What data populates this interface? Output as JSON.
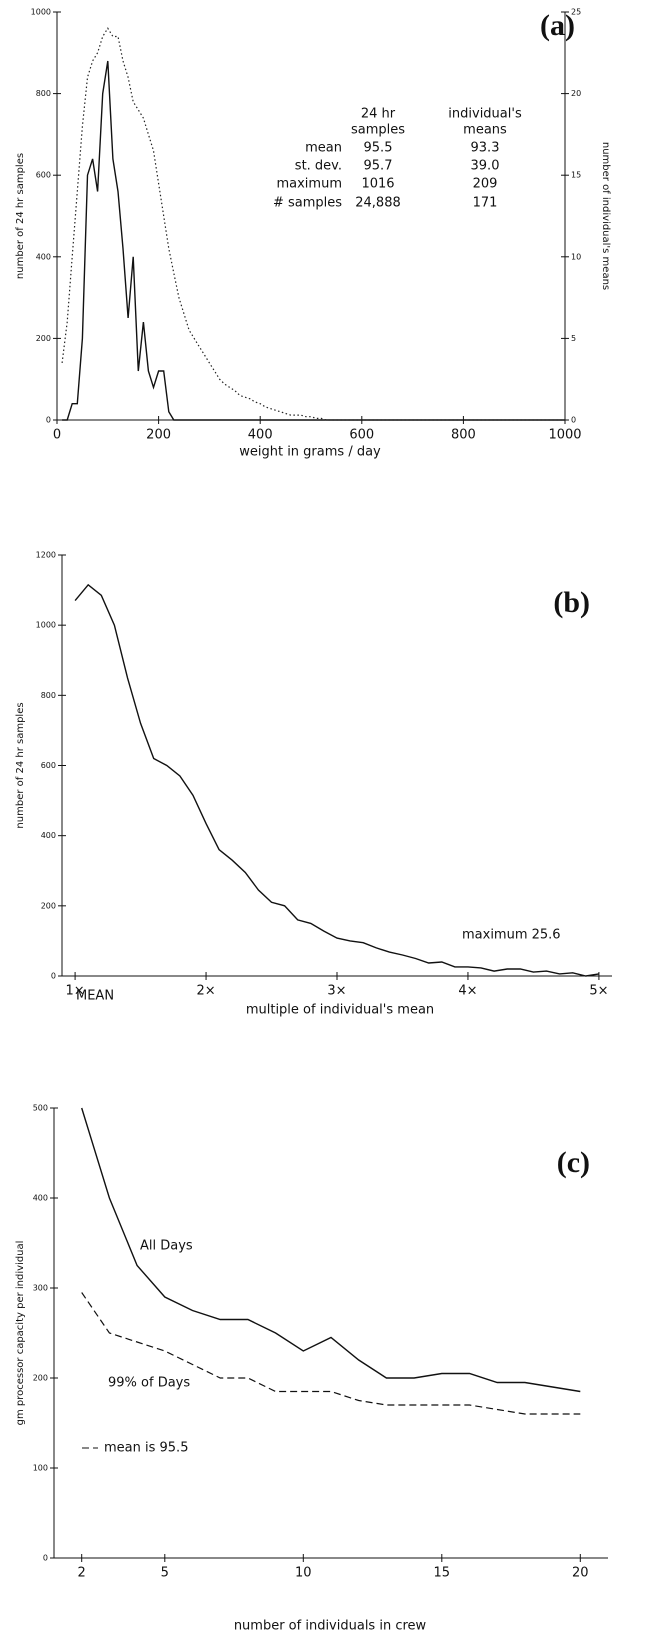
{
  "chart_data": [
    {
      "type": "line",
      "title": "(a)",
      "xlabel": "weight in grams / day",
      "ylabel": "number of 24 hr samples",
      "y2label": "number of individual's means",
      "x": [
        10,
        20,
        30,
        40,
        50,
        60,
        70,
        80,
        90,
        100,
        110,
        120,
        130,
        140,
        150,
        160,
        170,
        180,
        190,
        200,
        210,
        220,
        230,
        240,
        250,
        260,
        270,
        280,
        290,
        300,
        310,
        320,
        330,
        340,
        350,
        360,
        370,
        380,
        390,
        400,
        410,
        420,
        430,
        440,
        450,
        460,
        470,
        480,
        490,
        500,
        510,
        520,
        530,
        540,
        600,
        700,
        800,
        900,
        1000
      ],
      "series": [
        {
          "color": "#111111",
          "style": "solid",
          "values": [
            0,
            0,
            40,
            40,
            200,
            600,
            640,
            560,
            800,
            880,
            640,
            560,
            420,
            250,
            400,
            120,
            240,
            120,
            80,
            120,
            120,
            20,
            0,
            0,
            0,
            0,
            0,
            0,
            0,
            0,
            0,
            0,
            0,
            0,
            0,
            0,
            0,
            0,
            0,
            0,
            0,
            0,
            0,
            0,
            0,
            0,
            0,
            0,
            0,
            0,
            0,
            0,
            0,
            0,
            0,
            0,
            0,
            0,
            0
          ]
        },
        {
          "color": "#222222",
          "style": "dotted",
          "axis": "y2",
          "values": [
            3.5,
            6,
            10,
            14,
            18,
            21,
            22,
            22.5,
            23.5,
            24,
            23.5,
            23.5,
            22,
            21,
            19.5,
            19,
            18.5,
            17.5,
            16.5,
            14.5,
            12.5,
            10.5,
            9,
            7.5,
            6.5,
            5.5,
            5,
            4.5,
            4,
            3.5,
            3,
            2.5,
            2.2,
            2,
            1.8,
            1.5,
            1.4,
            1.3,
            1.1,
            1,
            0.8,
            0.7,
            0.6,
            0.5,
            0.4,
            0.3,
            0.3,
            0.3,
            0.2,
            0.2,
            0.1,
            0.1,
            0,
            0,
            0,
            0,
            0,
            0,
            0
          ]
        }
      ],
      "xlim": [
        0,
        1000
      ],
      "xticks": [
        0,
        200,
        400,
        600,
        800,
        1000
      ],
      "ylim": [
        0,
        1000
      ],
      "yticks": [
        0,
        200,
        400,
        600,
        800,
        1000
      ],
      "y2lim": [
        0,
        25
      ],
      "y2ticks": [
        0,
        5,
        10,
        15,
        20,
        25
      ],
      "table": {
        "columns": [
          [
            "24 hr",
            "samples"
          ],
          [
            "individual's",
            "means"
          ]
        ],
        "rows": [
          [
            "mean",
            "95.5",
            "93.3"
          ],
          [
            "st. dev.",
            "95.7",
            "39.0"
          ],
          [
            "maximum",
            "1016",
            "209"
          ],
          [
            "# samples",
            "24,888",
            "171"
          ]
        ]
      }
    },
    {
      "type": "line",
      "title": "(b)",
      "xlabel": "multiple of individual's mean",
      "ylabel": "number of 24 hr samples",
      "x": [
        1,
        1.1,
        1.2,
        1.3,
        1.4,
        1.5,
        1.6,
        1.7,
        1.8,
        1.9,
        2,
        2.1,
        2.2,
        2.3,
        2.4,
        2.5,
        2.6,
        2.7,
        2.8,
        2.9,
        3,
        3.1,
        3.2,
        3.3,
        3.4,
        3.5,
        3.6,
        3.7,
        3.8,
        3.9,
        4,
        4.1,
        4.2,
        4.3,
        4.4,
        4.5,
        4.6,
        4.7,
        4.8,
        4.9,
        5
      ],
      "series": [
        {
          "color": "#111111",
          "style": "solid",
          "values": [
            1070,
            1115,
            1085,
            1000,
            850,
            720,
            620,
            600,
            570,
            515,
            435,
            360,
            330,
            295,
            245,
            210,
            200,
            160,
            150,
            128,
            108,
            100,
            95,
            80,
            68,
            60,
            50,
            37,
            40,
            26,
            26,
            23,
            14,
            20,
            20,
            11,
            14,
            6,
            9,
            0,
            6
          ]
        }
      ],
      "xlim": [
        0.9,
        5.1
      ],
      "xticks": [
        {
          "value": 1,
          "label": "1×"
        },
        {
          "value": 2,
          "label": "2×"
        },
        {
          "value": 3,
          "label": "3×"
        },
        {
          "value": 4,
          "label": "4×"
        },
        {
          "value": 5,
          "label": "5×"
        }
      ],
      "ylim": [
        0,
        1200
      ],
      "yticks": [
        0,
        200,
        400,
        600,
        800,
        1000,
        1200
      ],
      "annotations": [
        "MEAN",
        "maximum 25.6"
      ]
    },
    {
      "type": "line",
      "title": "(c)",
      "xlabel": "number of individuals in crew",
      "ylabel": "gm processor capacity per individual",
      "x": [
        2,
        3,
        4,
        5,
        6,
        7,
        8,
        9,
        10,
        11,
        12,
        13,
        14,
        15,
        16,
        17,
        18,
        19,
        20
      ],
      "series": [
        {
          "color": "#111111",
          "style": "solid",
          "values": [
            500,
            400,
            325,
            290,
            275,
            265,
            265,
            250,
            230,
            245,
            220,
            200,
            200,
            205,
            205,
            195,
            195,
            190,
            185
          ]
        },
        {
          "color": "#111111",
          "style": "dashed",
          "values": [
            295,
            250,
            240,
            230,
            215,
            200,
            200,
            185,
            185,
            185,
            175,
            170,
            170,
            170,
            170,
            165,
            160,
            160,
            160
          ]
        }
      ],
      "xlim": [
        1,
        21
      ],
      "xticks": [
        2,
        5,
        10,
        15,
        20
      ],
      "ylim": [
        0,
        500
      ],
      "yticks": [
        0,
        100,
        200,
        300,
        400,
        500
      ],
      "annotations": [
        "All Days",
        "99% of Days",
        "mean is 95.5"
      ]
    }
  ]
}
